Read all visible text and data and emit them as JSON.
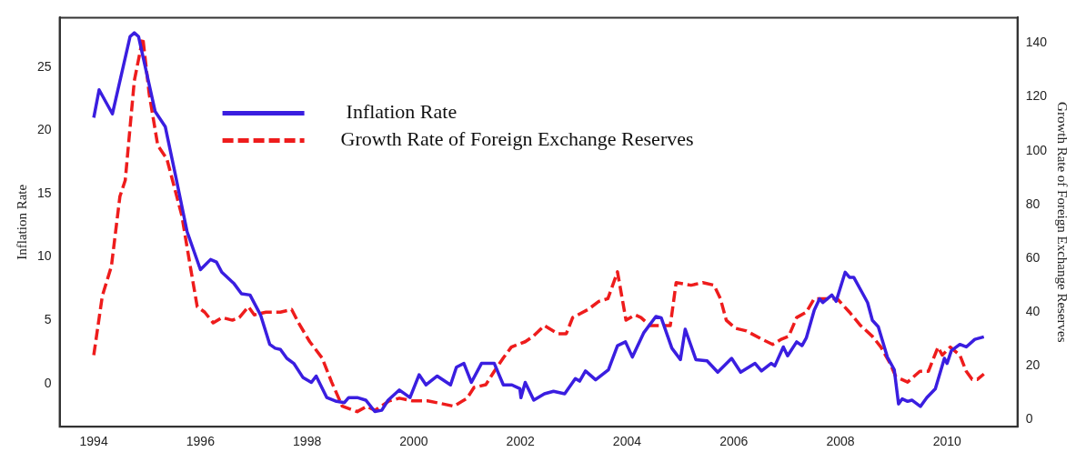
{
  "chart_data": {
    "type": "line",
    "xlabel": null,
    "ylabel": "Inflation Rate",
    "y2label": "Growth Rate of Foreign Exchange Reserves",
    "xlim": [
      1993.36,
      2011.32
    ],
    "xticks": [
      1994,
      1996,
      1998,
      2000,
      2002,
      2004,
      2006,
      2008,
      2010
    ],
    "ylim": [
      -3.4,
      28.9
    ],
    "yticks": [
      0,
      5,
      10,
      15,
      20,
      25
    ],
    "y2lim": [
      -2.6,
      149.5
    ],
    "y2ticks": [
      0,
      20,
      40,
      60,
      80,
      100,
      120,
      140
    ],
    "grid": false,
    "legend": "top",
    "marker": "none",
    "series": [
      {
        "name": "Inflation Rate",
        "color": "#3a1ee0",
        "line_style": "solid",
        "axis": "y",
        "x": [
          1994.0,
          1994.1,
          1994.35,
          1994.68,
          1994.76,
          1994.84,
          1995.15,
          1995.34,
          1995.53,
          1995.75,
          1996.0,
          1996.19,
          1996.3,
          1996.4,
          1996.63,
          1996.77,
          1996.93,
          1997.13,
          1997.3,
          1997.4,
          1997.5,
          1997.62,
          1997.75,
          1997.92,
          1998.08,
          1998.17,
          1998.37,
          1998.55,
          1998.7,
          1998.78,
          1998.94,
          1999.1,
          1999.27,
          1999.4,
          1999.52,
          1999.73,
          1999.93,
          2000.1,
          2000.23,
          2000.44,
          2000.69,
          2000.8,
          2000.94,
          2001.08,
          2001.27,
          2001.41,
          2001.51,
          2001.68,
          2001.84,
          2001.99,
          2002.01,
          2002.09,
          2002.25,
          2002.45,
          2002.62,
          2002.83,
          2003.03,
          2003.11,
          2003.22,
          2003.41,
          2003.65,
          2003.82,
          2003.97,
          2004.1,
          2004.31,
          2004.54,
          2004.64,
          2004.84,
          2005.0,
          2005.09,
          2005.29,
          2005.5,
          2005.7,
          2005.96,
          2006.13,
          2006.4,
          2006.52,
          2006.7,
          2006.77,
          2006.93,
          2007.01,
          2007.18,
          2007.28,
          2007.36,
          2007.51,
          2007.61,
          2007.67,
          2007.84,
          2007.92,
          2008.09,
          2008.17,
          2008.25,
          2008.42,
          2008.51,
          2008.6,
          2008.71,
          2008.88,
          2009.01,
          2009.09,
          2009.16,
          2009.26,
          2009.34,
          2009.5,
          2009.62,
          2009.78,
          2009.95,
          2010.0,
          2010.08,
          2010.24,
          2010.36,
          2010.52,
          2010.69
        ],
        "values": [
          21.0,
          23.2,
          21.3,
          27.4,
          27.7,
          27.4,
          21.5,
          20.3,
          16.5,
          12.0,
          9.0,
          9.8,
          9.6,
          8.8,
          7.9,
          7.1,
          7.0,
          5.4,
          3.1,
          2.8,
          2.7,
          2.0,
          1.6,
          0.5,
          0.1,
          0.6,
          -1.1,
          -1.4,
          -1.5,
          -1.1,
          -1.1,
          -1.3,
          -2.2,
          -2.1,
          -1.3,
          -0.5,
          -1.1,
          0.7,
          -0.1,
          0.6,
          -0.1,
          1.3,
          1.6,
          0.1,
          1.6,
          1.6,
          1.6,
          -0.1,
          -0.1,
          -0.4,
          -1.1,
          0.1,
          -1.3,
          -0.8,
          -0.6,
          -0.8,
          0.4,
          0.2,
          1.0,
          0.3,
          1.1,
          3.0,
          3.3,
          2.1,
          4.0,
          5.3,
          5.2,
          2.8,
          1.9,
          4.3,
          1.9,
          1.8,
          0.9,
          2.0,
          0.9,
          1.6,
          1.0,
          1.6,
          1.4,
          2.9,
          2.2,
          3.3,
          3.0,
          3.6,
          5.8,
          6.7,
          6.4,
          7.0,
          6.5,
          8.8,
          8.4,
          8.4,
          7.1,
          6.4,
          5.0,
          4.5,
          2.1,
          1.1,
          -1.6,
          -1.2,
          -1.4,
          -1.3,
          -1.8,
          -1.1,
          -0.4,
          2.0,
          1.6,
          2.6,
          3.1,
          2.9,
          3.5,
          3.7
        ]
      },
      {
        "name": "Growth Rate of Foreign Exchange Reserves",
        "color": "#ee1c1c",
        "line_style": "dashed",
        "axis": "y2",
        "x": [
          1994.0,
          1994.16,
          1994.33,
          1994.49,
          1994.59,
          1994.76,
          1994.87,
          1994.92,
          1995.04,
          1995.2,
          1995.37,
          1995.65,
          1995.81,
          1995.94,
          1996.08,
          1996.24,
          1996.41,
          1996.6,
          1996.73,
          1996.9,
          1997.01,
          1997.23,
          1997.5,
          1997.71,
          1997.84,
          1998.05,
          1998.28,
          1998.46,
          1998.66,
          1998.94,
          1999.12,
          1999.27,
          1999.54,
          1999.73,
          1999.98,
          2000.26,
          2000.52,
          2000.75,
          2001.0,
          2001.13,
          2001.35,
          2001.51,
          2001.68,
          2001.83,
          2002.09,
          2002.24,
          2002.45,
          2002.7,
          2002.86,
          2002.98,
          2003.27,
          2003.47,
          2003.64,
          2003.82,
          2003.98,
          2004.15,
          2004.26,
          2004.43,
          2004.63,
          2004.81,
          2004.92,
          2005.2,
          2005.42,
          2005.63,
          2005.75,
          2005.86,
          2006.03,
          2006.24,
          2006.52,
          2006.73,
          2006.9,
          2007.03,
          2007.18,
          2007.36,
          2007.51,
          2007.72,
          2007.94,
          2008.17,
          2008.38,
          2008.6,
          2008.76,
          2008.93,
          2009.04,
          2009.26,
          2009.49,
          2009.65,
          2009.83,
          2009.91,
          2010.06,
          2010.24,
          2010.36,
          2010.47,
          2010.57,
          2010.69
        ],
        "values": [
          24,
          46,
          57,
          83,
          89,
          126,
          137,
          142,
          121,
          102,
          97,
          76,
          57,
          42,
          40,
          36,
          38,
          37,
          38,
          42,
          39,
          40,
          40,
          41,
          36,
          29,
          23,
          14,
          5,
          3,
          5,
          3.5,
          7,
          8,
          7,
          7,
          6,
          5,
          8,
          12,
          13,
          18,
          23,
          27,
          29,
          31,
          35,
          32,
          32,
          38,
          41,
          44,
          45,
          55,
          37,
          39,
          38,
          35,
          35,
          35,
          51,
          50,
          51,
          50,
          45,
          37,
          34,
          33,
          30,
          28,
          30,
          31,
          38,
          40,
          45,
          45,
          45,
          40,
          35,
          31,
          27,
          21,
          16,
          14,
          18,
          18,
          27,
          24,
          27,
          24,
          18,
          15,
          15,
          17
        ]
      }
    ]
  }
}
